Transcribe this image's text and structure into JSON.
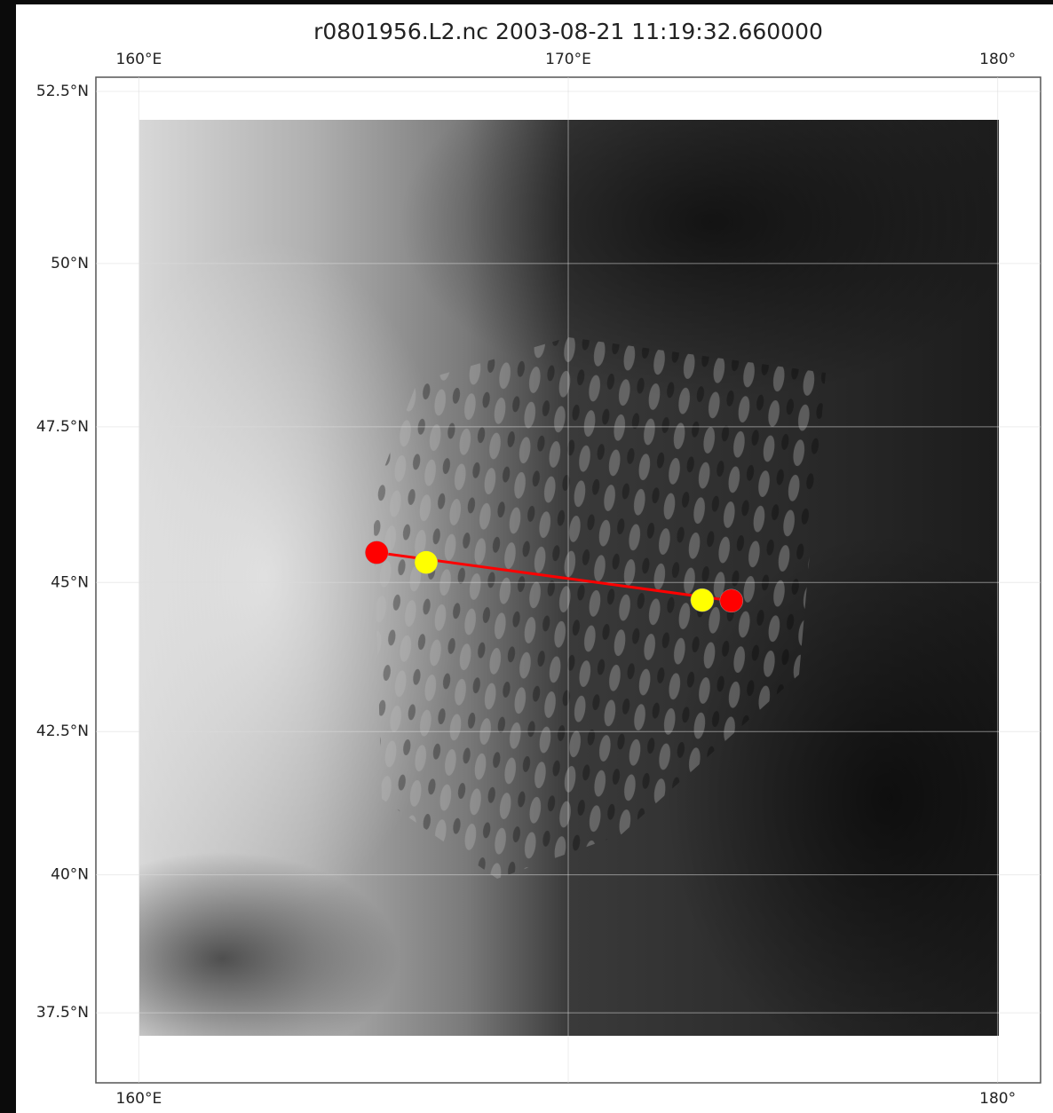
{
  "chart_data": {
    "type": "map",
    "title": "r0801956.L2.nc 2003-08-21 11:19:32.660000",
    "projection": "mercator",
    "xlim": [
      159,
      181
    ],
    "ylim": [
      36.2,
      52.7
    ],
    "xticks": [
      {
        "value": 160,
        "label": "160°E"
      },
      {
        "value": 170,
        "label": "170°E"
      },
      {
        "value": 180,
        "label": "180°"
      }
    ],
    "yticks": [
      {
        "value": 37.5,
        "label": "37.5°N"
      },
      {
        "value": 40,
        "label": "40°N"
      },
      {
        "value": 42.5,
        "label": "42.5°N"
      },
      {
        "value": 45,
        "label": "45°N"
      },
      {
        "value": 47.5,
        "label": "47.5°N"
      },
      {
        "value": 50,
        "label": "50°N"
      },
      {
        "value": 52.5,
        "label": "52.5°N"
      }
    ],
    "grid": true,
    "series": [
      {
        "color": "#ff0000",
        "x": [
          165.54,
          173.8
        ],
        "y": [
          45.49,
          44.7
        ]
      },
      {
        "color": "#ffff00",
        "x": [
          166.69,
          173.12
        ],
        "y": [
          45.33,
          44.71
        ]
      }
    ]
  }
}
